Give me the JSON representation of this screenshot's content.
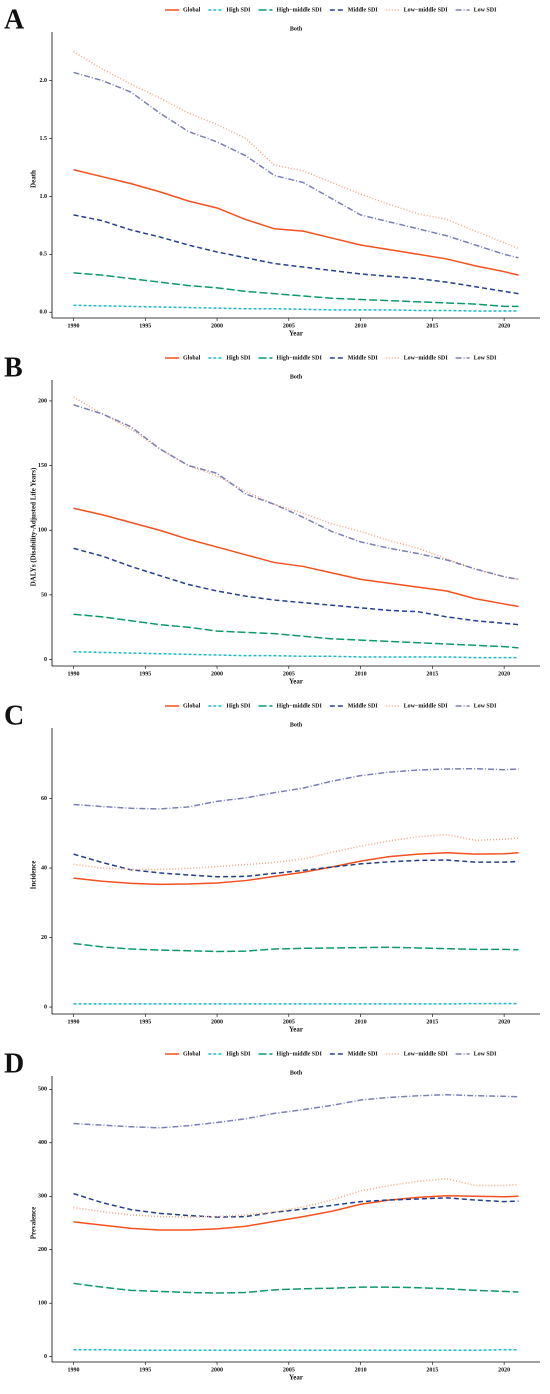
{
  "chart_data": [
    {
      "panel": "A",
      "type": "line",
      "title": "Both",
      "xlabel": "Year",
      "ylabel": "Death",
      "legend": "top",
      "x": [
        1990,
        1992,
        1994,
        1996,
        1998,
        2000,
        2002,
        2004,
        2006,
        2008,
        2010,
        2012,
        2014,
        2016,
        2018,
        2020,
        2021
      ],
      "xlim": [
        1988.5,
        2022.5
      ],
      "xticks": [
        1990,
        1995,
        2000,
        2005,
        2010,
        2015,
        2020
      ],
      "ylim": [
        -0.05,
        2.35
      ],
      "yticks": [
        {
          "value": 0,
          "label": "0.0"
        },
        0.5,
        {
          "value": 1,
          "label": "1.0"
        },
        1.5,
        {
          "value": 2,
          "label": "2.0"
        }
      ],
      "series": [
        {
          "name": "Global",
          "color": "#f4511e",
          "linestyle": "solid",
          "values": [
            1.23,
            1.17,
            1.11,
            1.04,
            0.96,
            0.9,
            0.8,
            0.72,
            0.7,
            0.64,
            0.58,
            0.54,
            0.5,
            0.46,
            0.4,
            0.35,
            0.32
          ]
        },
        {
          "name": "High SDI",
          "color": "#1cb8cc",
          "linestyle": "dotted-dash",
          "values": [
            0.06,
            0.055,
            0.05,
            0.045,
            0.04,
            0.035,
            0.03,
            0.03,
            0.025,
            0.02,
            0.02,
            0.02,
            0.015,
            0.015,
            0.01,
            0.01,
            0.01
          ]
        },
        {
          "name": "High−middle SDI",
          "color": "#0b9a6e",
          "linestyle": "longdash",
          "values": [
            0.34,
            0.32,
            0.29,
            0.26,
            0.23,
            0.21,
            0.18,
            0.16,
            0.14,
            0.12,
            0.11,
            0.1,
            0.09,
            0.08,
            0.07,
            0.05,
            0.05
          ]
        },
        {
          "name": "Middle SDI",
          "color": "#23408e",
          "linestyle": "dashed",
          "values": [
            0.84,
            0.79,
            0.71,
            0.65,
            0.58,
            0.52,
            0.47,
            0.42,
            0.39,
            0.36,
            0.33,
            0.31,
            0.29,
            0.26,
            0.22,
            0.18,
            0.16
          ]
        },
        {
          "name": "Low−middle SDI",
          "color": "#f4a582",
          "linestyle": "dotted",
          "values": [
            2.25,
            2.1,
            1.97,
            1.85,
            1.72,
            1.62,
            1.5,
            1.27,
            1.22,
            1.12,
            1.02,
            0.93,
            0.85,
            0.8,
            0.7,
            0.6,
            0.55
          ]
        },
        {
          "name": "Low SDI",
          "color": "#7a7fb5",
          "linestyle": "dashdot",
          "values": [
            2.07,
            2.0,
            1.9,
            1.72,
            1.56,
            1.47,
            1.35,
            1.18,
            1.12,
            0.98,
            0.84,
            0.78,
            0.72,
            0.66,
            0.58,
            0.5,
            0.47
          ]
        }
      ]
    },
    {
      "panel": "B",
      "type": "line",
      "title": "Both",
      "xlabel": "Year",
      "ylabel": "DALYs (Disability-Adjusted Life Years)",
      "legend": "top",
      "x": [
        1990,
        1992,
        1994,
        1996,
        1998,
        2000,
        2002,
        2004,
        2006,
        2008,
        2010,
        2012,
        2014,
        2016,
        2018,
        2020,
        2021
      ],
      "xlim": [
        1988.5,
        2022.5
      ],
      "xticks": [
        1990,
        1995,
        2000,
        2005,
        2010,
        2015,
        2020
      ],
      "ylim": [
        -5,
        210
      ],
      "yticks": [
        0,
        50,
        100,
        150,
        200
      ],
      "series": [
        {
          "name": "Global",
          "color": "#f4511e",
          "linestyle": "solid",
          "values": [
            117,
            112,
            106,
            100,
            93,
            87,
            81,
            75,
            72,
            67,
            62,
            59,
            56,
            53,
            47,
            43,
            41
          ]
        },
        {
          "name": "High SDI",
          "color": "#1cb8cc",
          "linestyle": "dotted-dash",
          "values": [
            6,
            5.5,
            5,
            4.5,
            4,
            3.5,
            3,
            3,
            2.5,
            2.5,
            2,
            2,
            2,
            2,
            1.5,
            1.5,
            1.5
          ]
        },
        {
          "name": "High−middle SDI",
          "color": "#0b9a6e",
          "linestyle": "longdash",
          "values": [
            35,
            33,
            30,
            27,
            25,
            22,
            21,
            20,
            18,
            16,
            15,
            14,
            13,
            12,
            11,
            10,
            9
          ]
        },
        {
          "name": "Middle SDI",
          "color": "#23408e",
          "linestyle": "dashed",
          "values": [
            86,
            80,
            72,
            65,
            58,
            53,
            49,
            46,
            44,
            42,
            40,
            38,
            37,
            33,
            30,
            28,
            27
          ]
        },
        {
          "name": "Low−middle SDI",
          "color": "#f4a582",
          "linestyle": "dotted",
          "values": [
            203,
            190,
            178,
            163,
            150,
            142,
            130,
            120,
            113,
            105,
            99,
            92,
            86,
            78,
            70,
            64,
            62
          ]
        },
        {
          "name": "Low SDI",
          "color": "#7a7fb5",
          "linestyle": "dashdot",
          "values": [
            197,
            190,
            180,
            163,
            150,
            144,
            128,
            120,
            110,
            99,
            91,
            86,
            82,
            77,
            70,
            64,
            62
          ]
        }
      ]
    },
    {
      "panel": "C",
      "type": "line",
      "title": "Both",
      "xlabel": "Year",
      "ylabel": "Incidence",
      "legend": "top",
      "x": [
        1990,
        1992,
        1994,
        1996,
        1998,
        2000,
        2002,
        2004,
        2006,
        2008,
        2010,
        2012,
        2014,
        2016,
        2018,
        2020,
        2021
      ],
      "xlim": [
        1988.5,
        2022.5
      ],
      "xticks": [
        1990,
        1995,
        2000,
        2005,
        2010,
        2015,
        2020
      ],
      "ylim": [
        -2,
        78
      ],
      "yticks": [
        0,
        20,
        40,
        60
      ],
      "series": [
        {
          "name": "Global",
          "color": "#f4511e",
          "linestyle": "solid",
          "values": [
            37.1,
            36.2,
            35.6,
            35.3,
            35.4,
            35.7,
            36.4,
            37.6,
            38.8,
            40.3,
            42.0,
            43.3,
            44.0,
            44.4,
            44.0,
            44.1,
            44.4
          ]
        },
        {
          "name": "High SDI",
          "color": "#1cb8cc",
          "linestyle": "dotted-dash",
          "values": [
            0.9,
            0.9,
            0.9,
            0.9,
            0.9,
            0.9,
            0.9,
            0.9,
            0.9,
            0.9,
            0.9,
            0.9,
            0.9,
            0.9,
            1.0,
            1.0,
            1.0
          ]
        },
        {
          "name": "High−middle SDI",
          "color": "#0b9a6e",
          "linestyle": "longdash",
          "values": [
            18.3,
            17.3,
            16.7,
            16.4,
            16.2,
            16.0,
            16.1,
            16.7,
            16.9,
            17.0,
            17.1,
            17.2,
            17.0,
            16.8,
            16.6,
            16.6,
            16.5
          ]
        },
        {
          "name": "Middle SDI",
          "color": "#23408e",
          "linestyle": "dashed",
          "values": [
            44.0,
            41.6,
            39.5,
            38.6,
            38.0,
            37.5,
            37.6,
            38.5,
            39.3,
            40.3,
            41.2,
            41.8,
            42.2,
            42.3,
            41.7,
            41.7,
            41.9
          ]
        },
        {
          "name": "Low−middle SDI",
          "color": "#f4a582",
          "linestyle": "dotted",
          "values": [
            41.1,
            40.0,
            39.6,
            39.6,
            39.9,
            40.4,
            41.0,
            41.6,
            42.6,
            44.5,
            46.3,
            47.8,
            49.0,
            49.6,
            48.0,
            48.3,
            48.6
          ]
        },
        {
          "name": "Low SDI",
          "color": "#7a7fb5",
          "linestyle": "dashdot",
          "values": [
            58.3,
            57.7,
            57.2,
            57.0,
            57.6,
            59.2,
            60.2,
            61.7,
            63.0,
            65.0,
            66.6,
            67.6,
            68.2,
            68.5,
            68.6,
            68.3,
            68.5
          ]
        }
      ]
    },
    {
      "panel": "D",
      "type": "line",
      "title": "Both",
      "xlabel": "Year",
      "ylabel": "Prevalence",
      "legend": "top",
      "x": [
        1990,
        1992,
        1994,
        1996,
        1998,
        2000,
        2002,
        2004,
        2006,
        2008,
        2010,
        2012,
        2014,
        2016,
        2018,
        2020,
        2021
      ],
      "xlim": [
        1988.5,
        2022.5
      ],
      "xticks": [
        1990,
        1995,
        2000,
        2005,
        2010,
        2015,
        2020
      ],
      "ylim": [
        -10,
        510
      ],
      "yticks": [
        0,
        100,
        200,
        300,
        400,
        500
      ],
      "series": [
        {
          "name": "Global",
          "color": "#f4511e",
          "linestyle": "solid",
          "values": [
            252,
            246,
            240,
            237,
            237,
            239,
            244,
            253,
            262,
            272,
            285,
            293,
            298,
            301,
            300,
            299,
            300
          ]
        },
        {
          "name": "High SDI",
          "color": "#1cb8cc",
          "linestyle": "dotted-dash",
          "values": [
            13,
            13,
            12,
            12,
            12,
            12,
            12,
            12,
            12,
            12,
            12,
            12,
            12,
            12,
            12,
            13,
            13
          ]
        },
        {
          "name": "High−middle SDI",
          "color": "#0b9a6e",
          "linestyle": "longdash",
          "values": [
            137,
            130,
            124,
            122,
            120,
            119,
            120,
            125,
            127,
            128,
            130,
            130,
            129,
            127,
            124,
            122,
            121
          ]
        },
        {
          "name": "Middle SDI",
          "color": "#23408e",
          "linestyle": "dashed",
          "values": [
            305,
            288,
            275,
            268,
            264,
            261,
            262,
            270,
            276,
            283,
            290,
            293,
            295,
            297,
            293,
            290,
            291
          ]
        },
        {
          "name": "Low−middle SDI",
          "color": "#f4a582",
          "linestyle": "dotted",
          "values": [
            279,
            271,
            265,
            262,
            261,
            262,
            265,
            271,
            280,
            293,
            310,
            320,
            328,
            333,
            320,
            320,
            322
          ]
        },
        {
          "name": "Low SDI",
          "color": "#7a7fb5",
          "linestyle": "dashdot",
          "values": [
            436,
            433,
            430,
            428,
            432,
            438,
            445,
            455,
            462,
            470,
            480,
            485,
            488,
            490,
            488,
            487,
            486
          ]
        }
      ]
    }
  ]
}
